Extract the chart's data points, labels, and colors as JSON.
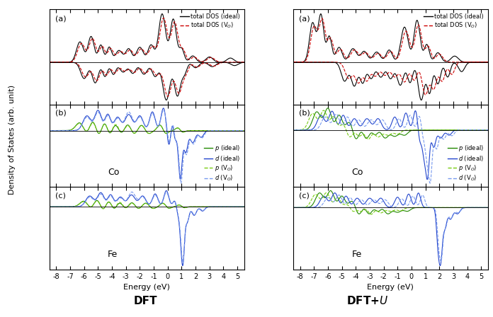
{
  "xlim": [
    -8.5,
    5.5
  ],
  "xticks": [
    -8,
    -7,
    -6,
    -5,
    -4,
    -3,
    -2,
    -1,
    0,
    1,
    2,
    3,
    4,
    5
  ],
  "xlabel": "Energy (eV)",
  "ylabel": "Density of States (arb. unit)",
  "colors": {
    "black": "#000000",
    "red": "#cc0000",
    "green": "#228800",
    "blue": "#2244cc",
    "green_v": "#77cc11",
    "blue_v": "#7799ee"
  },
  "bottom_labels": [
    "DFT",
    "DFT+\\mathit{U}"
  ]
}
